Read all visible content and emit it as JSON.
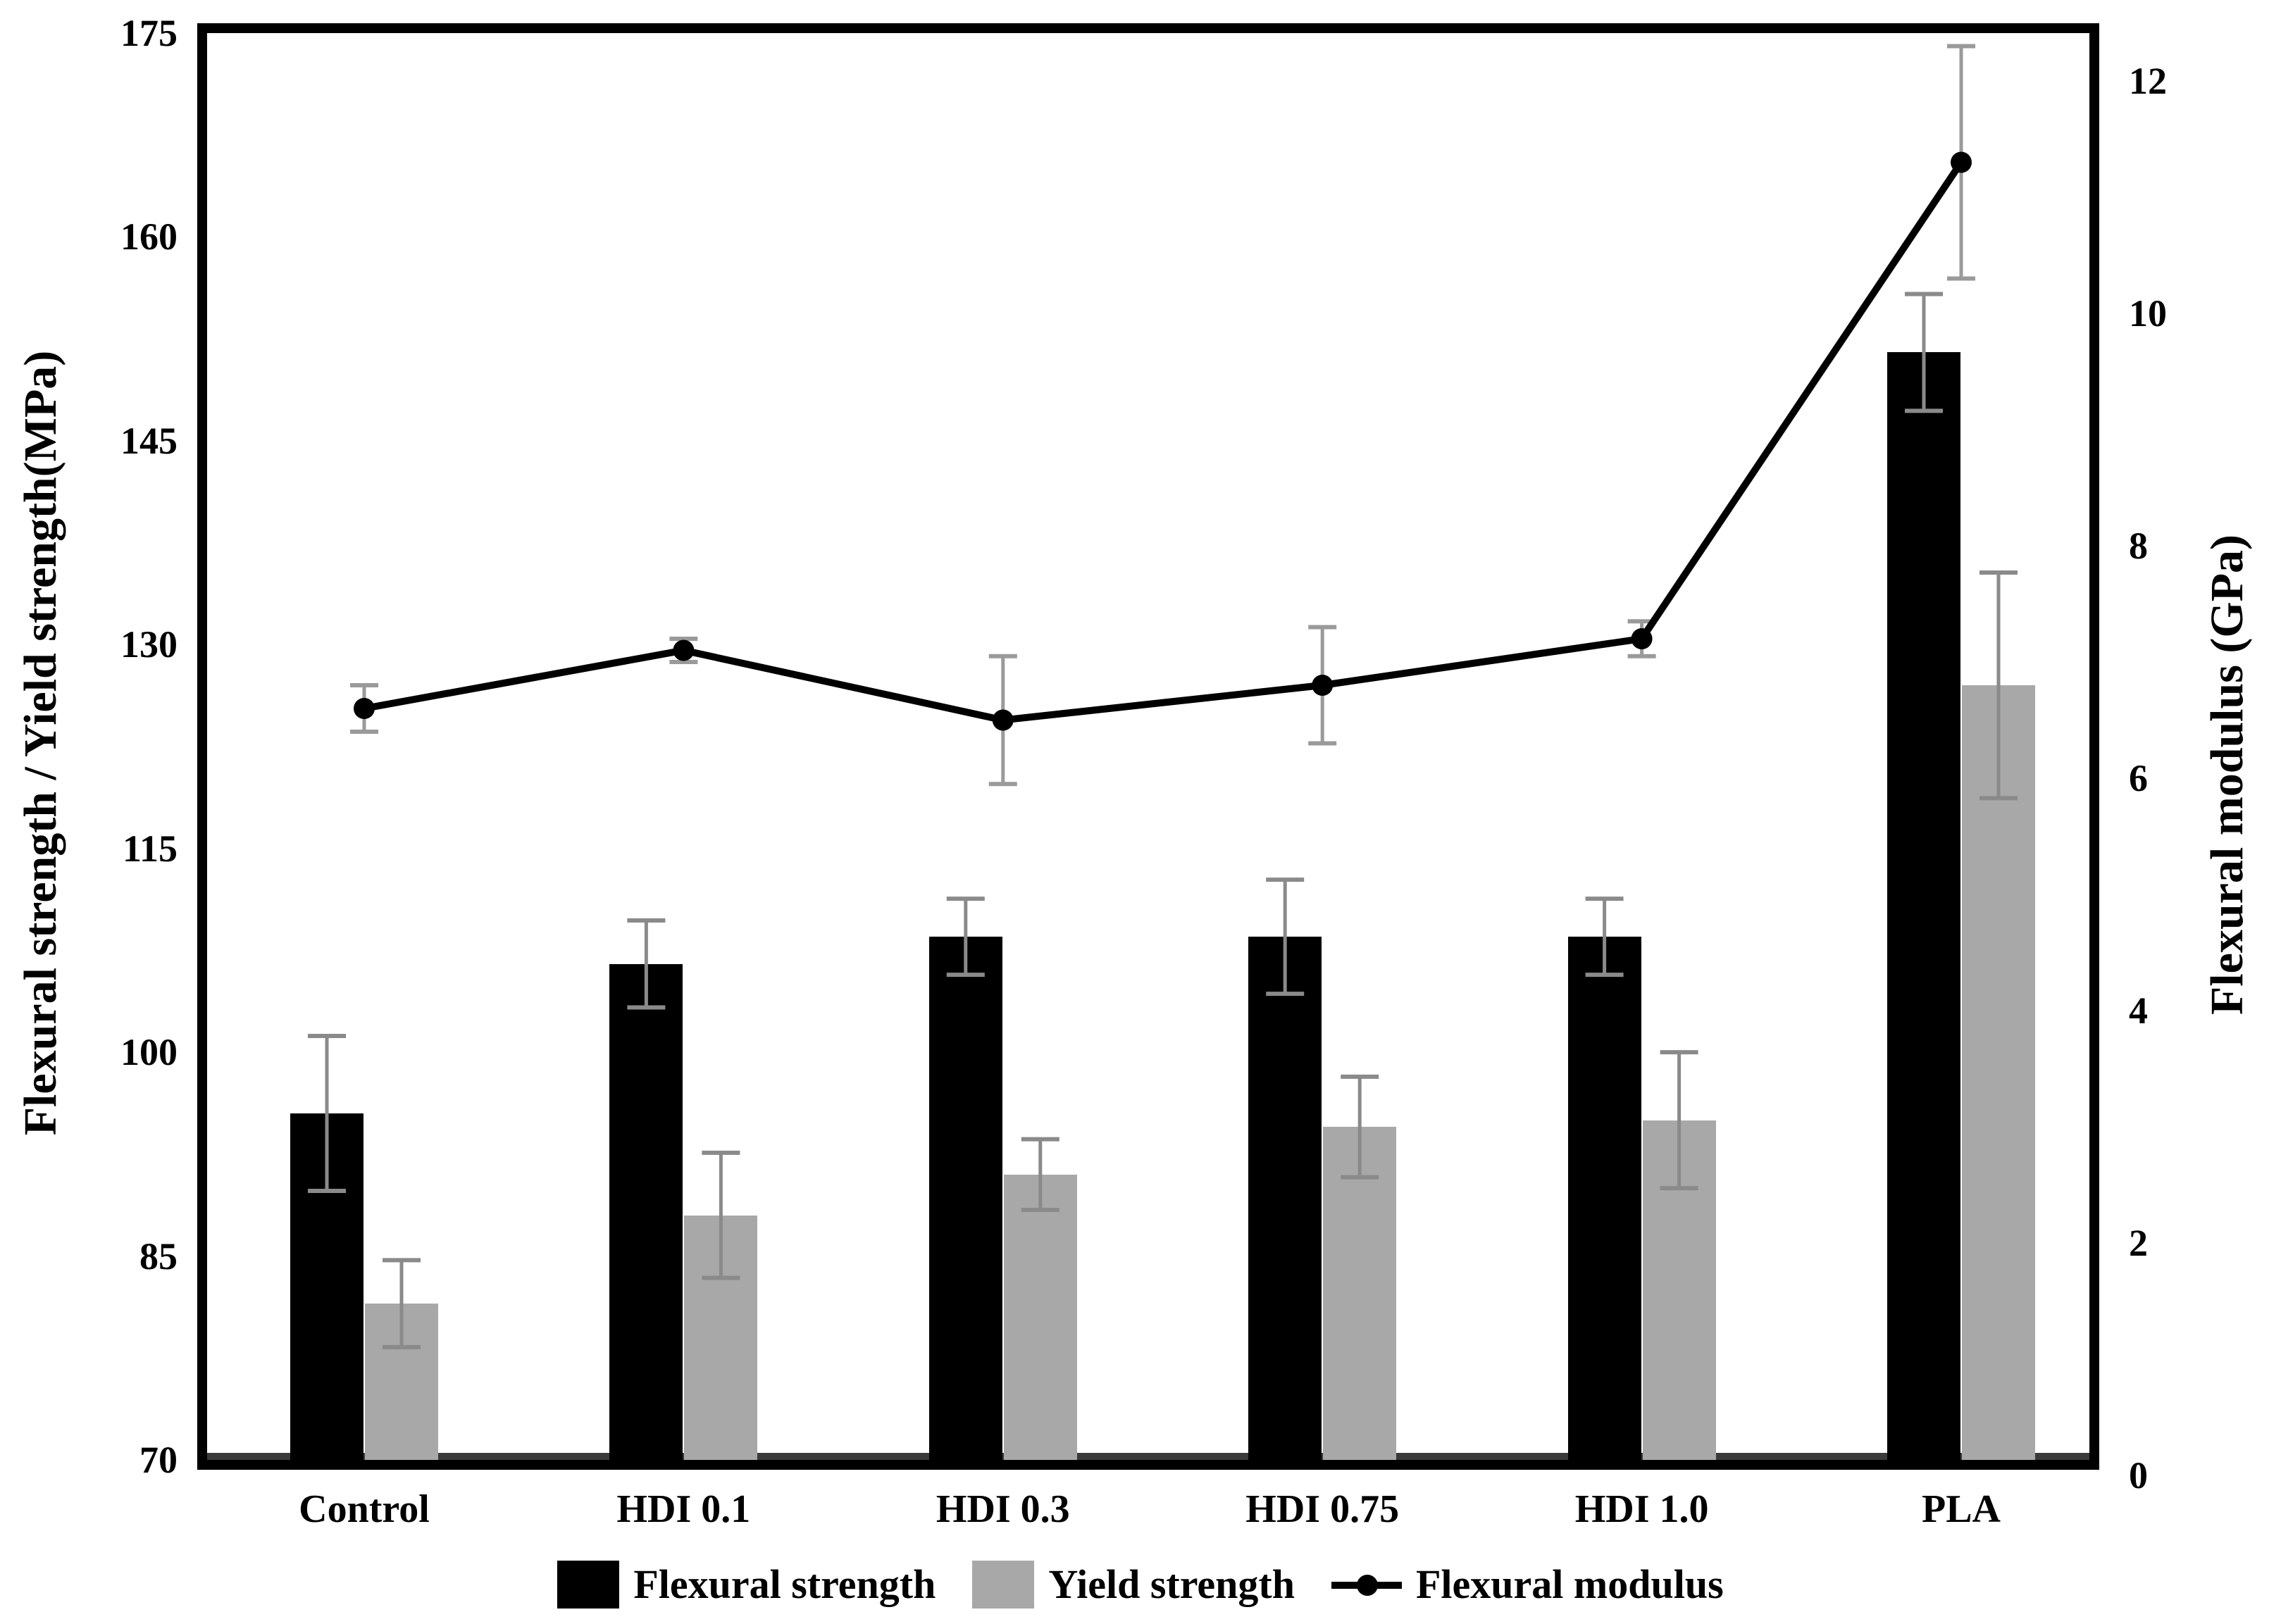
{
  "figure": {
    "title": "",
    "left_axis_title": "Flexural strength / Yield strength(MPa)",
    "right_axis_title": "Flexural modulus (GPa)"
  },
  "chart_data": {
    "type": "bar",
    "subtype": "grouped-bars-with-line-overlay",
    "categories": [
      "Control",
      "HDI 0.1",
      "HDI 0.3",
      "HDI 0.75",
      "HDI 1.0",
      "PLA"
    ],
    "series": [
      {
        "name": "Flexural strength",
        "type": "bar",
        "axis": "left",
        "color": "#000000",
        "values": [
          95.5,
          106.5,
          108.5,
          108.5,
          108.5,
          151.5
        ],
        "errors": [
          5.7,
          3.2,
          2.8,
          4.2,
          2.8,
          4.3
        ]
      },
      {
        "name": "Yield strength",
        "type": "bar",
        "axis": "left",
        "color": "#a8a8a8",
        "values": [
          81.5,
          88.0,
          91.0,
          94.5,
          95.0,
          127.0
        ],
        "errors": [
          3.2,
          4.6,
          2.6,
          3.7,
          5.0,
          8.3
        ]
      },
      {
        "name": "Flexural modulus",
        "type": "line",
        "axis": "right",
        "color": "#000000",
        "values": [
          6.6,
          7.1,
          6.5,
          6.8,
          7.2,
          11.3
        ],
        "errors": [
          0.2,
          0.1,
          0.55,
          0.5,
          0.15,
          1.0
        ]
      }
    ],
    "left_axis": {
      "label": "Flexural strength / Yield strength(MPa)",
      "min": 70,
      "max": 175,
      "ticks": [
        175,
        160,
        145,
        130,
        115,
        100,
        85,
        70
      ]
    },
    "right_axis": {
      "label": "Flexural modulus (GPa)",
      "min": 0,
      "max": 12,
      "ticks": [
        12,
        10,
        8,
        6,
        4,
        2,
        0
      ]
    },
    "xlabel": "",
    "ylabel": "Flexural strength / Yield strength(MPa)",
    "y2label": "Flexural modulus (GPa)",
    "grid": false,
    "legend_position": "bottom"
  },
  "legend": {
    "items": [
      {
        "label": "Flexural strength",
        "swatch": "black-bar"
      },
      {
        "label": "Yield strength",
        "swatch": "gray-bar"
      },
      {
        "label": "Flexural modulus",
        "swatch": "line-dot"
      }
    ]
  },
  "colors": {
    "bar_black": "#000000",
    "bar_gray": "#a8a8a8",
    "bar_error": "#8a8a8a",
    "modulus_error": "#9a9a9a",
    "line": "#000000",
    "frame": "#000000",
    "background": "#ffffff"
  }
}
